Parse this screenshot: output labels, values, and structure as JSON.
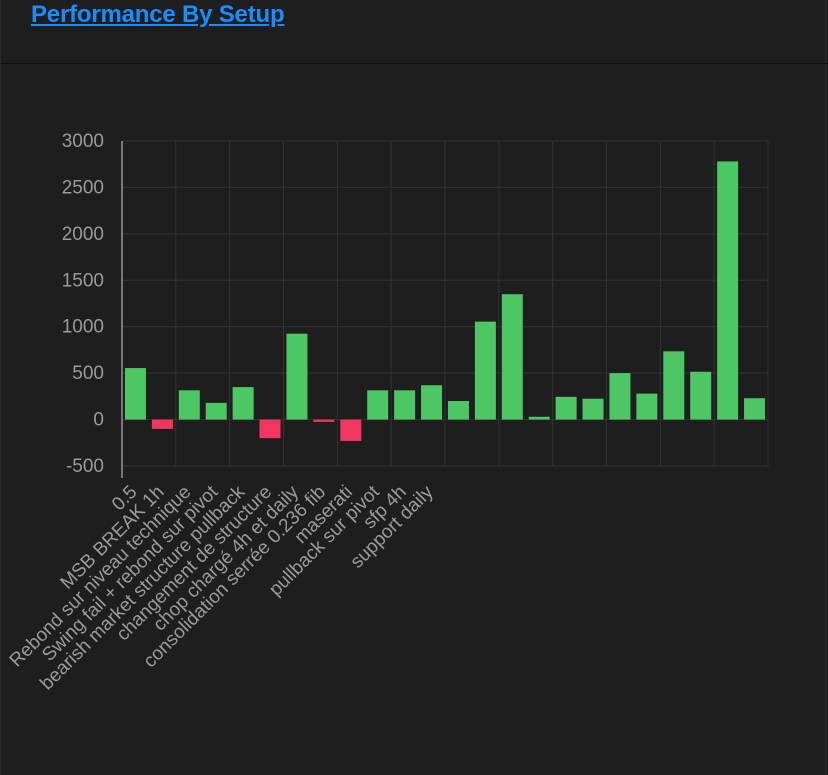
{
  "header": {
    "title": "Performance By Setup"
  },
  "colors": {
    "positive": "#4cc763",
    "negative": "#f0385e",
    "grid": "#333333",
    "axis_text": "#9a9a9a",
    "link": "#1a8cff"
  },
  "chart_data": {
    "type": "bar",
    "title": "",
    "xlabel": "",
    "ylabel": "",
    "ylim": [
      -500,
      3000
    ],
    "yticks": [
      3000,
      2500,
      2000,
      1500,
      1000,
      500,
      0,
      -500
    ],
    "grid": true,
    "legend": "none",
    "tick_labels": [
      "0.5",
      "MSB BREAK 1h",
      "Rebond sur niveau technique",
      "Swing fail + rebond sur pivot",
      "bearish market structure pullback",
      "changement de structure",
      "chop chargé 4h et daily",
      "consolidation serrée 0.236 fib",
      "maserati",
      "pullback sur pivot",
      "sfp 4h",
      "support daily"
    ],
    "values": [
      555,
      -100,
      315,
      180,
      350,
      -200,
      925,
      -25,
      -230,
      315,
      315,
      370,
      200,
      1055,
      1350,
      30,
      245,
      225,
      500,
      280,
      735,
      515,
      2780,
      230
    ]
  }
}
